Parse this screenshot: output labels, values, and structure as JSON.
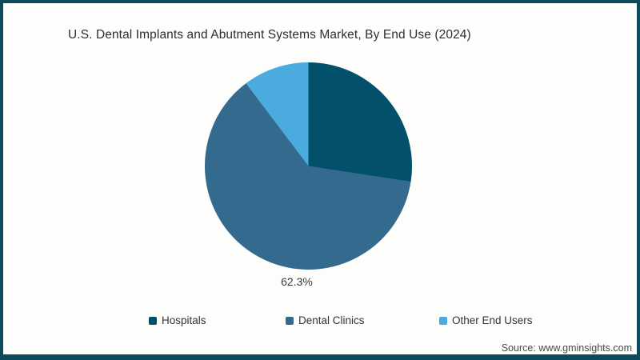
{
  "chart_data": {
    "type": "pie",
    "title": "U.S. Dental Implants and Abutment Systems Market, By End Use (2024)",
    "slices": [
      {
        "label": "Hospitals",
        "value": 27.4,
        "color": "#03506b"
      },
      {
        "label": "Dental Clinics",
        "value": 62.3,
        "color": "#336a8d"
      },
      {
        "label": "Other End Users",
        "value": 10.3,
        "color": "#4babdf"
      }
    ],
    "start_angle_deg": 0,
    "direction": "clockwise",
    "shown_data_label": "62.3%",
    "legend_position": "bottom"
  },
  "source": {
    "label": "Source: www.gminsights.com"
  },
  "colors": {
    "frame_border": "#0e4a5f",
    "background": "#fdfdfb"
  }
}
